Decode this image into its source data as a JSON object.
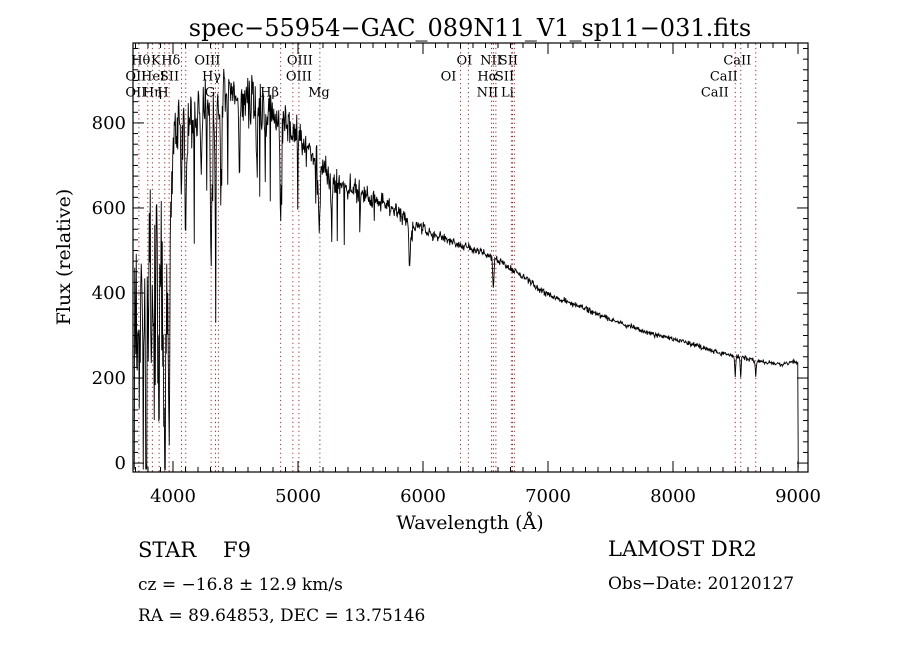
{
  "title": "spec−55954−GAC_089N11_V1_sp11−031.fits",
  "chart_data": {
    "type": "line",
    "title": "spec−55954−GAC_089N11_V1_sp11−031.fits",
    "xlabel": "Wavelength (Å)",
    "ylabel": "Flux (relative)",
    "x_range": [
      3680,
      9080
    ],
    "y_range": [
      -21,
      988
    ],
    "x_ticks": [
      4000,
      5000,
      6000,
      7000,
      8000,
      9000
    ],
    "y_ticks": [
      0,
      200,
      400,
      600,
      800
    ],
    "x_minor_step": 100,
    "y_minor_step": 25,
    "line_color": "#000000",
    "marker_color": "#992a2a",
    "continuum": [
      [
        3690,
        360
      ],
      [
        3730,
        420
      ],
      [
        3770,
        330
      ],
      [
        3815,
        430
      ],
      [
        3855,
        350
      ],
      [
        3895,
        430
      ],
      [
        3935,
        330
      ],
      [
        3970,
        400
      ],
      [
        3990,
        650
      ],
      [
        4010,
        760
      ],
      [
        4060,
        790
      ],
      [
        4150,
        810
      ],
      [
        4250,
        832
      ],
      [
        4350,
        846
      ],
      [
        4450,
        860
      ],
      [
        4550,
        856
      ],
      [
        4650,
        842
      ],
      [
        4750,
        826
      ],
      [
        4850,
        806
      ],
      [
        4950,
        782
      ],
      [
        5050,
        748
      ],
      [
        5175,
        702
      ],
      [
        5300,
        666
      ],
      [
        5450,
        646
      ],
      [
        5600,
        624
      ],
      [
        5750,
        600
      ],
      [
        5900,
        566
      ],
      [
        6050,
        544
      ],
      [
        6200,
        526
      ],
      [
        6350,
        508
      ],
      [
        6500,
        492
      ],
      [
        6650,
        468
      ],
      [
        6800,
        438
      ],
      [
        6950,
        405
      ],
      [
        7100,
        385
      ],
      [
        7250,
        370
      ],
      [
        7400,
        350
      ],
      [
        7550,
        333
      ],
      [
        7700,
        317
      ],
      [
        7850,
        302
      ],
      [
        8000,
        292
      ],
      [
        8150,
        280
      ],
      [
        8300,
        266
      ],
      [
        8450,
        254
      ],
      [
        8600,
        245
      ],
      [
        8750,
        237
      ],
      [
        8870,
        231
      ],
      [
        8950,
        239
      ],
      [
        9000,
        236
      ]
    ],
    "noise_amplitude": [
      [
        3690,
        235
      ],
      [
        3975,
        235
      ],
      [
        3995,
        95
      ],
      [
        4300,
        80
      ],
      [
        4700,
        70
      ],
      [
        5000,
        55
      ],
      [
        5300,
        42
      ],
      [
        5600,
        30
      ],
      [
        5900,
        22
      ],
      [
        6200,
        15
      ],
      [
        6500,
        12
      ],
      [
        6800,
        10
      ],
      [
        7200,
        9
      ],
      [
        7800,
        8
      ],
      [
        8400,
        7
      ],
      [
        9010,
        6
      ]
    ],
    "absorption_lines": [
      {
        "wl": 3798,
        "depth": 190,
        "width": 16
      },
      {
        "wl": 3835,
        "depth": 210,
        "width": 16
      },
      {
        "wl": 3889,
        "depth": 190,
        "width": 16
      },
      {
        "wl": 3934,
        "depth": 250,
        "width": 15
      },
      {
        "wl": 3969,
        "depth": 280,
        "width": 15
      },
      {
        "wl": 4068,
        "depth": 150,
        "width": 12
      },
      {
        "wl": 4102,
        "depth": 240,
        "width": 14
      },
      {
        "wl": 4226,
        "depth": 170,
        "width": 12
      },
      {
        "wl": 4305,
        "depth": 450,
        "width": 13
      },
      {
        "wl": 4340,
        "depth": 260,
        "width": 13
      },
      {
        "wl": 4383,
        "depth": 200,
        "width": 12
      },
      {
        "wl": 4530,
        "depth": 150,
        "width": 10
      },
      {
        "wl": 4668,
        "depth": 140,
        "width": 10
      },
      {
        "wl": 4861,
        "depth": 200,
        "width": 13
      },
      {
        "wl": 5170,
        "depth": 165,
        "width": 15
      },
      {
        "wl": 5270,
        "depth": 130,
        "width": 12
      },
      {
        "wl": 5893,
        "depth": 110,
        "width": 13
      },
      {
        "wl": 6563,
        "depth": 85,
        "width": 11
      },
      {
        "wl": 8498,
        "depth": 45,
        "width": 9
      },
      {
        "wl": 8542,
        "depth": 48,
        "width": 9
      },
      {
        "wl": 8662,
        "depth": 38,
        "width": 9
      }
    ],
    "spectral_line_markers": [
      {
        "label": "Hθ",
        "wl": 3798,
        "row": 1,
        "dx": -7
      },
      {
        "label": "K",
        "wl": 3934,
        "row": 1,
        "dx": -9
      },
      {
        "label": "Hδ",
        "wl": 4102,
        "row": 1,
        "dx": -15
      },
      {
        "label": "OIII",
        "wl": 4363,
        "row": 1,
        "dx": -11
      },
      {
        "label": "OIII",
        "wl": 5007,
        "row": 1,
        "dx": 1
      },
      {
        "label": "OII",
        "wl": 3727,
        "row": 2,
        "dx": -3
      },
      {
        "label": "HeI",
        "wl": 3889,
        "row": 2,
        "dx": -6
      },
      {
        "label": "SII",
        "wl": 4068,
        "row": 2,
        "dx": -12
      },
      {
        "label": "Hγ",
        "wl": 4340,
        "row": 2,
        "dx": -4
      },
      {
        "label": "OIII",
        "wl": 4959,
        "row": 2,
        "dx": 6
      },
      {
        "label": "OII",
        "wl": 3727,
        "row": 3,
        "dx": -3
      },
      {
        "label": "Hη",
        "wl": 3835,
        "row": 3,
        "dx": 0
      },
      {
        "label": "H",
        "wl": 3969,
        "row": 3,
        "dx": -6
      },
      {
        "label": "G",
        "wl": 4305,
        "row": 3,
        "dx": -1
      },
      {
        "label": "Hβ",
        "wl": 4861,
        "row": 3,
        "dx": -11
      },
      {
        "label": "Mg",
        "wl": 5175,
        "row": 3,
        "dx": -1
      },
      {
        "label": "OI",
        "wl": 6363,
        "row": 1,
        "dx": -4
      },
      {
        "label": "NII",
        "wl": 6583,
        "row": 1,
        "dx": -5
      },
      {
        "label": "SII",
        "wl": 6731,
        "row": 1,
        "dx": -6
      },
      {
        "label": "OI",
        "wl": 6300,
        "row": 2,
        "dx": -12
      },
      {
        "label": "Hα",
        "wl": 6563,
        "row": 2,
        "dx": -6
      },
      {
        "label": "SII",
        "wl": 6716,
        "row": 2,
        "dx": -8
      },
      {
        "label": "NII",
        "wl": 6548,
        "row": 3,
        "dx": -4
      },
      {
        "label": "Li",
        "wl": 6707,
        "row": 3,
        "dx": -4
      },
      {
        "label": "CaII",
        "wl": 8498,
        "row": 1,
        "dx": 2
      },
      {
        "label": "CaII",
        "wl": 8542,
        "row": 2,
        "dx": -17
      },
      {
        "label": "CaII",
        "wl": 8662,
        "row": 3,
        "dx": -41
      }
    ]
  },
  "footer": {
    "object_type": "STAR",
    "subclass": "F9",
    "survey": "LAMOST DR2",
    "cz": "cz = −16.8 ± 12.9 km/s",
    "obs_date": "Obs−Date: 20120127",
    "ra_dec": "RA =  89.64853, DEC =  13.75146"
  }
}
